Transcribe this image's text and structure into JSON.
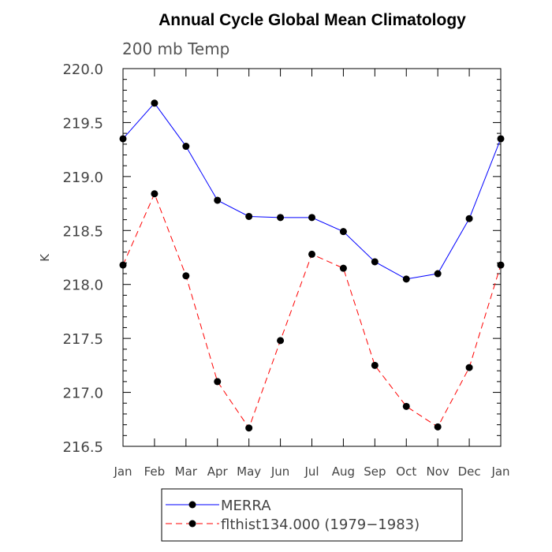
{
  "chart_data": {
    "type": "line",
    "title": "Annual Cycle Global Mean Climatology",
    "subtitle": "200 mb Temp",
    "xlabel": "",
    "ylabel": "K",
    "categories": [
      "Jan",
      "Feb",
      "Mar",
      "Apr",
      "May",
      "Jun",
      "Jul",
      "Aug",
      "Sep",
      "Oct",
      "Nov",
      "Dec",
      "Jan"
    ],
    "ylim": [
      216.5,
      220.0
    ],
    "yticks": [
      "216.5",
      "217.0",
      "217.5",
      "218.0",
      "218.5",
      "219.0",
      "219.5",
      "220.0"
    ],
    "grid": false,
    "legend_position": "bottom",
    "series": [
      {
        "name": "MERRA",
        "color": "#0000ff",
        "line_style": "solid",
        "values": [
          219.35,
          219.68,
          219.28,
          218.78,
          218.63,
          218.62,
          218.62,
          218.49,
          218.21,
          218.05,
          218.1,
          218.61,
          219.35
        ]
      },
      {
        "name": "flthist134.000 (1979−1983)",
        "color": "#ff0000",
        "line_style": "dashed",
        "values": [
          218.18,
          218.84,
          218.08,
          217.1,
          216.67,
          217.48,
          218.28,
          218.15,
          217.25,
          216.87,
          216.68,
          217.23,
          218.18
        ]
      }
    ]
  }
}
